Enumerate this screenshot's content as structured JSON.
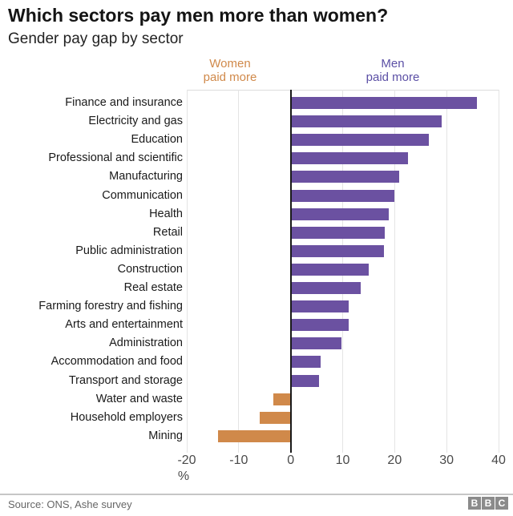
{
  "header": {
    "title": "Which sectors pay men more than women?",
    "subtitle": "Gender pay gap by sector"
  },
  "direction_labels": {
    "women": {
      "line1": "Women",
      "line2": "paid more",
      "color": "#d0894a"
    },
    "men": {
      "line1": "Men",
      "line2": "paid more",
      "color": "#5b4fa5"
    }
  },
  "chart_data": {
    "type": "bar",
    "orientation": "horizontal",
    "categories": [
      "Finance and insurance",
      "Electricity and gas",
      "Education",
      "Professional and scientific",
      "Manufacturing",
      "Communication",
      "Health",
      "Retail",
      "Public administration",
      "Construction",
      "Real estate",
      "Farming forestry and fishing",
      "Arts and entertainment",
      "Administration",
      "Accommodation and food",
      "Transport and storage",
      "Water and waste",
      "Household employers",
      "Mining"
    ],
    "values": [
      35.9,
      29.1,
      26.6,
      22.6,
      20.9,
      20.0,
      18.9,
      18.1,
      17.9,
      15.0,
      13.5,
      11.1,
      11.2,
      9.7,
      5.7,
      5.4,
      -3.3,
      -5.9,
      -14.0
    ],
    "xlim": [
      -20,
      40
    ],
    "x_ticks": [
      -20,
      -10,
      0,
      10,
      20,
      30,
      40
    ],
    "x_unit_label": "%",
    "grid": true,
    "title": "Which sectors pay men more than women?",
    "subtitle": "Gender pay gap by sector",
    "colors": {
      "positive_bar": "#6b51a1",
      "negative_bar": "#d0894a",
      "zero_line": "#1a1a1a",
      "gridline": "#e4e4e4"
    }
  },
  "footer": {
    "source": "Source: ONS, Ashe survey",
    "logo_letters": [
      "B",
      "B",
      "C"
    ]
  }
}
